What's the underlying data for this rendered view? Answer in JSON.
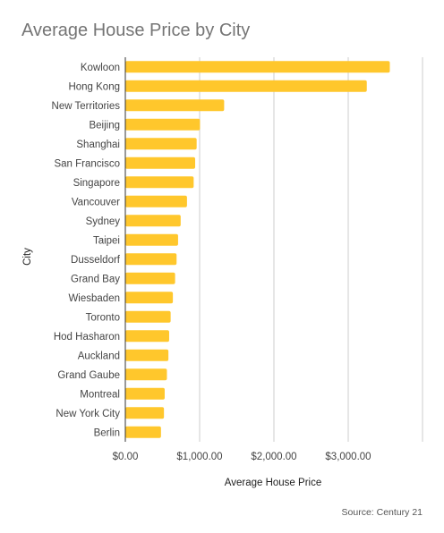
{
  "chart_data": {
    "type": "bar",
    "orientation": "horizontal",
    "title": "Average House Price by City",
    "xlabel": "Average House Price",
    "ylabel": "City",
    "source": "Source: Century 21",
    "categories": [
      "Kowloon",
      "Hong Kong",
      "New Territories",
      "Beijing",
      "Shanghai",
      "San Francisco",
      "Singapore",
      "Vancouver",
      "Sydney",
      "Taipei",
      "Dusseldorf",
      "Grand Bay",
      "Wiesbaden",
      "Toronto",
      "Hod Hasharon",
      "Auckland",
      "Grand Gaube",
      "Montreal",
      "New York City",
      "Berlin"
    ],
    "values": [
      3560,
      3250,
      1330,
      1005,
      960,
      940,
      920,
      830,
      745,
      710,
      690,
      670,
      640,
      610,
      590,
      580,
      560,
      530,
      520,
      480
    ],
    "xlim": [
      0,
      4000
    ],
    "xticks": [
      0,
      1000,
      2000,
      3000,
      4000
    ],
    "xtick_labels": [
      "$0.00",
      "$1,000.00",
      "$2,000.00",
      "$3,000.00",
      ""
    ],
    "grid": true,
    "legend": "none",
    "bar_color": "#ffc72c"
  }
}
